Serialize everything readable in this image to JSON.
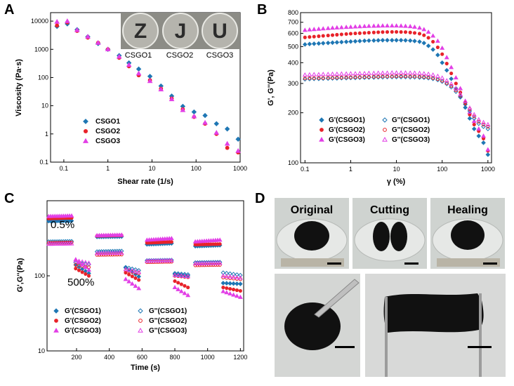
{
  "panels": [
    {
      "letter": "A"
    },
    {
      "letter": "B"
    },
    {
      "letter": "C"
    },
    {
      "letter": "D"
    }
  ],
  "colors": {
    "s1": "#1f77b4",
    "s2": "#e8232a",
    "s3": "#e23fe6"
  },
  "chart_data": [
    {
      "id": "A",
      "type": "scatter",
      "xlabel": "Shear rate (1/s)",
      "ylabel": "Viscosity (Pa·s)",
      "xscale": "log",
      "yscale": "log",
      "xlim": [
        0.05,
        1000
      ],
      "ylim": [
        0.1,
        20000
      ],
      "xticks": [
        {
          "v": 0.1,
          "label": "0.1"
        },
        {
          "v": 1,
          "label": "1"
        },
        {
          "v": 10,
          "label": "10"
        },
        {
          "v": 100,
          "label": "100"
        },
        {
          "v": 1000,
          "label": "1000"
        }
      ],
      "yticks": [
        {
          "v": 0.1,
          "label": "0.1"
        },
        {
          "v": 1,
          "label": "1"
        },
        {
          "v": 10,
          "label": "10"
        },
        {
          "v": 100,
          "label": "100"
        },
        {
          "v": 1000,
          "label": "1000"
        },
        {
          "v": 10000,
          "label": "10000"
        }
      ],
      "legend_pos": "bottom-left",
      "series": [
        {
          "name": "CSGO1",
          "marker": "diamond",
          "fill": "filled",
          "color": "#1f77b4",
          "x": [
            0.07,
            0.12,
            0.2,
            0.35,
            0.6,
            1,
            1.8,
            3,
            5,
            9,
            16,
            28,
            50,
            90,
            160,
            290,
            510,
            900
          ],
          "y": [
            6500,
            8000,
            5000,
            2800,
            1600,
            1000,
            600,
            330,
            200,
            110,
            50,
            22,
            9.5,
            6,
            4.5,
            2.3,
            1.5,
            0.65
          ]
        },
        {
          "name": "CSGO2",
          "marker": "circle",
          "fill": "filled",
          "color": "#e8232a",
          "x": [
            0.07,
            0.12,
            0.2,
            0.35,
            0.6,
            1,
            1.8,
            3,
            5,
            9,
            16,
            28,
            50,
            90,
            160,
            290,
            510,
            900
          ],
          "y": [
            7000,
            9000,
            4500,
            2600,
            1700,
            1000,
            500,
            250,
            120,
            80,
            40,
            18,
            7.5,
            4,
            2.3,
            1,
            0.32,
            0.22
          ]
        },
        {
          "name": "CSGO3",
          "marker": "triangle",
          "fill": "filled",
          "color": "#e23fe6",
          "x": [
            0.07,
            0.12,
            0.2,
            0.35,
            0.6,
            1,
            1.8,
            3,
            5,
            9,
            16,
            28,
            50,
            90,
            160,
            290,
            510,
            900
          ],
          "y": [
            9500,
            10000,
            4800,
            2800,
            1700,
            1000,
            550,
            280,
            140,
            75,
            38,
            17,
            7,
            4.2,
            2.5,
            1.1,
            0.45,
            0.25
          ]
        }
      ],
      "inset": {
        "captions": [
          "CSGO1",
          "CSGO2",
          "CSGO3"
        ],
        "glyphs": [
          "Z",
          "J",
          "U"
        ]
      }
    },
    {
      "id": "B",
      "type": "scatter",
      "xlabel": "γ (%)",
      "ylabel": "G', G''(Pa)",
      "xscale": "log",
      "yscale": "log",
      "xlim": [
        0.08,
        1200
      ],
      "ylim": [
        100,
        800
      ],
      "xticks": [
        {
          "v": 0.1,
          "label": "0.1"
        },
        {
          "v": 1,
          "label": "1"
        },
        {
          "v": 10,
          "label": "10"
        },
        {
          "v": 100,
          "label": "100"
        },
        {
          "v": 1000,
          "label": "1000"
        }
      ],
      "yticks": [
        {
          "v": 100,
          "label": "100"
        },
        {
          "v": 200,
          "label": "200"
        },
        {
          "v": 300,
          "label": "300"
        },
        {
          "v": 400,
          "label": "400"
        },
        {
          "v": 500,
          "label": "500"
        },
        {
          "v": 600,
          "label": "600"
        },
        {
          "v": 700,
          "label": "700"
        },
        {
          "v": 800,
          "label": "800"
        }
      ],
      "legend_pos": "bottom-left",
      "x": [
        0.1,
        0.126,
        0.158,
        0.2,
        0.25,
        0.32,
        0.4,
        0.5,
        0.63,
        0.8,
        1,
        1.26,
        1.58,
        2,
        2.5,
        3.2,
        4,
        5,
        6.3,
        8,
        10,
        12.6,
        15.8,
        20,
        25,
        32,
        40,
        50,
        63,
        80,
        100,
        126,
        158,
        200,
        250,
        320,
        400,
        500,
        630,
        800,
        1000
      ],
      "series": [
        {
          "name": "G'(CSGO1)",
          "marker": "diamond",
          "fill": "filled",
          "color": "#1f77b4",
          "y": [
            515,
            518,
            520,
            522,
            524,
            526,
            528,
            530,
            532,
            534,
            536,
            538,
            540,
            542,
            543,
            544,
            545,
            546,
            546,
            546,
            546,
            546,
            545,
            543,
            540,
            535,
            525,
            505,
            480,
            445,
            400,
            360,
            320,
            280,
            250,
            215,
            185,
            160,
            145,
            132,
            112
          ]
        },
        {
          "name": "G'(CSGO2)",
          "marker": "circle",
          "fill": "filled",
          "color": "#e8232a",
          "y": [
            568,
            571,
            574,
            577,
            580,
            583,
            586,
            589,
            592,
            595,
            598,
            600,
            602,
            604,
            606,
            608,
            610,
            611,
            612,
            613,
            613,
            612,
            611,
            608,
            604,
            598,
            585,
            565,
            535,
            495,
            450,
            395,
            345,
            300,
            265,
            225,
            195,
            170,
            155,
            140,
            118
          ]
        },
        {
          "name": "G'(CSGO3)",
          "marker": "triangle",
          "fill": "filled",
          "color": "#e23fe6",
          "y": [
            628,
            632,
            635,
            638,
            641,
            644,
            647,
            650,
            652,
            654,
            656,
            658,
            660,
            662,
            664,
            665,
            666,
            667,
            667,
            667,
            667,
            666,
            664,
            661,
            656,
            648,
            634,
            612,
            580,
            540,
            490,
            430,
            375,
            325,
            280,
            235,
            202,
            178,
            160,
            145,
            120
          ]
        },
        {
          "name": "G''(CSGO1)",
          "marker": "diamond",
          "fill": "open",
          "color": "#1f77b4",
          "y": [
            318,
            319,
            320,
            320,
            321,
            321,
            322,
            322,
            323,
            323,
            324,
            324,
            325,
            325,
            326,
            326,
            327,
            327,
            328,
            328,
            328,
            328,
            328,
            327,
            327,
            326,
            325,
            323,
            320,
            315,
            308,
            298,
            285,
            268,
            248,
            225,
            205,
            185,
            172,
            165,
            160
          ]
        },
        {
          "name": "G''(CSGO2)",
          "marker": "circle",
          "fill": "open",
          "color": "#e8232a",
          "y": [
            322,
            323,
            323,
            324,
            324,
            325,
            325,
            326,
            326,
            327,
            327,
            328,
            328,
            329,
            329,
            330,
            330,
            331,
            331,
            331,
            332,
            332,
            332,
            331,
            331,
            330,
            329,
            327,
            324,
            319,
            312,
            302,
            290,
            273,
            253,
            230,
            210,
            190,
            177,
            170,
            165
          ]
        },
        {
          "name": "G''(CSGO3)",
          "marker": "triangle",
          "fill": "open",
          "color": "#e23fe6",
          "y": [
            338,
            339,
            340,
            340,
            341,
            341,
            342,
            342,
            343,
            343,
            344,
            344,
            345,
            345,
            346,
            346,
            347,
            347,
            347,
            348,
            348,
            348,
            348,
            347,
            347,
            346,
            344,
            342,
            338,
            332,
            324,
            312,
            298,
            280,
            258,
            235,
            214,
            195,
            182,
            175,
            170
          ]
        }
      ],
      "legend_cols": [
        [
          "G'(CSGO1)",
          "G'(CSGO2)",
          "G'(CSGO3)"
        ],
        [
          "G''(CSGO1)",
          "G''(CSGO2)",
          "G''(CSGO3)"
        ]
      ]
    },
    {
      "id": "C",
      "type": "scatter",
      "xlabel": "Time (s)",
      "ylabel": "G',G''(Pa)",
      "xscale": "linear",
      "yscale": "log",
      "xlim": [
        20,
        1220
      ],
      "ylim": [
        10,
        1000
      ],
      "xticks": [
        {
          "v": 200,
          "label": "200"
        },
        {
          "v": 400,
          "label": "400"
        },
        {
          "v": 600,
          "label": "600"
        },
        {
          "v": 800,
          "label": "800"
        },
        {
          "v": 1000,
          "label": "1000"
        },
        {
          "v": 1200,
          "label": "1200"
        }
      ],
      "yticks": [
        {
          "v": 10,
          "label": "10"
        },
        {
          "v": 100,
          "label": "100"
        }
      ],
      "legend_pos": "bottom-left",
      "segments": [
        {
          "t0": 30,
          "t1": 170,
          "n": 12
        },
        {
          "t0": 195,
          "t1": 275,
          "n": 5
        },
        {
          "t0": 325,
          "t1": 475,
          "n": 12
        },
        {
          "t0": 500,
          "t1": 580,
          "n": 5
        },
        {
          "t0": 630,
          "t1": 780,
          "n": 12
        },
        {
          "t0": 800,
          "t1": 880,
          "n": 5
        },
        {
          "t0": 925,
          "t1": 1075,
          "n": 12
        },
        {
          "t0": 1095,
          "t1": 1200,
          "n": 6
        }
      ],
      "series": [
        {
          "name": "G'(CSGO1)",
          "marker": "diamond",
          "fill": "filled",
          "color": "#1f77b4",
          "levels": [
            [
              535,
              540
            ],
            [
              140,
              108
            ],
            [
              330,
              333
            ],
            [
              128,
              98
            ],
            [
              262,
              270
            ],
            [
              105,
              100
            ],
            [
              248,
              255
            ],
            [
              80,
              78
            ]
          ]
        },
        {
          "name": "G''(CSGO1)",
          "marker": "diamond",
          "fill": "open",
          "color": "#1f77b4",
          "levels": [
            [
              285,
              288
            ],
            [
              150,
              142
            ],
            [
              210,
              214
            ],
            [
              130,
              118
            ],
            [
              160,
              162
            ],
            [
              108,
              104
            ],
            [
              150,
              152
            ],
            [
              110,
              102
            ]
          ]
        },
        {
          "name": "G'(CSGO2)",
          "marker": "circle",
          "fill": "filled",
          "color": "#e8232a",
          "levels": [
            [
              580,
              590
            ],
            [
              125,
              100
            ],
            [
              340,
              345
            ],
            [
              110,
              88
            ],
            [
              275,
              283
            ],
            [
              85,
              70
            ],
            [
              260,
              265
            ],
            [
              70,
              63
            ]
          ]
        },
        {
          "name": "G''(CSGO2)",
          "marker": "circle",
          "fill": "open",
          "color": "#e8232a",
          "levels": [
            [
              275,
              278
            ],
            [
              140,
              130
            ],
            [
              190,
              192
            ],
            [
              118,
              108
            ],
            [
              152,
              154
            ],
            [
              100,
              96
            ],
            [
              138,
              140
            ],
            [
              95,
              90
            ]
          ]
        },
        {
          "name": "G'(CSGO3)",
          "marker": "triangle",
          "fill": "filled",
          "color": "#e23fe6",
          "levels": [
            [
              620,
              630
            ],
            [
              165,
              120
            ],
            [
              345,
              350
            ],
            [
              90,
              68
            ],
            [
              300,
              315
            ],
            [
              70,
              55
            ],
            [
              285,
              300
            ],
            [
              62,
              52
            ]
          ]
        },
        {
          "name": "G''(CSGO3)",
          "marker": "triangle",
          "fill": "open",
          "color": "#e23fe6",
          "levels": [
            [
              265,
              268
            ],
            [
              160,
              148
            ],
            [
              200,
              202
            ],
            [
              122,
              112
            ],
            [
              158,
              160
            ],
            [
              102,
              98
            ],
            [
              146,
              148
            ],
            [
              100,
              94
            ]
          ]
        }
      ],
      "annotations": [
        "0.5%",
        "500%"
      ],
      "legend_cols": [
        [
          "G'(CSGO1)",
          "G'(CSGO2)",
          "G'(CSGO3)"
        ],
        [
          "G''(CSGO1)",
          "G''(CSGO2)",
          "G''(CSGO3)"
        ]
      ]
    }
  ],
  "photos": {
    "top_captions": [
      "Original",
      "Cutting",
      "Healing"
    ]
  }
}
